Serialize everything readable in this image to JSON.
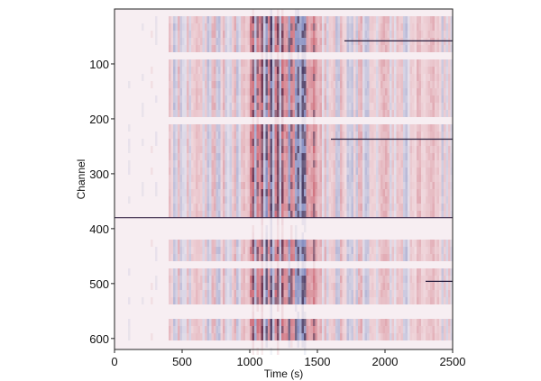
{
  "chart_data": {
    "type": "heatmap",
    "title": "",
    "xlabel": "Time (s)",
    "ylabel": "Channel",
    "xlim": [
      0,
      2500
    ],
    "ylim": [
      0,
      620
    ],
    "y_inverted": true,
    "x_ticks": [
      0,
      500,
      1000,
      1500,
      2000,
      2500
    ],
    "y_ticks": [
      100,
      200,
      300,
      400,
      500,
      600
    ],
    "colormap": [
      "#1f3a93",
      "#ffffff",
      "#b2182b"
    ],
    "dense_column_bands": [
      {
        "x_start": 400,
        "x_end": 2500,
        "intensity": 0.35
      },
      {
        "x_start": 1000,
        "x_end": 1500,
        "intensity": 0.9
      }
    ],
    "quiet_row_bands": [
      {
        "y_start": 0,
        "y_end": 15
      },
      {
        "y_start": 80,
        "y_end": 90
      },
      {
        "y_start": 195,
        "y_end": 210
      },
      {
        "y_start": 370,
        "y_end": 410
      },
      {
        "y_start": 450,
        "y_end": 465
      },
      {
        "y_start": 535,
        "y_end": 550
      },
      {
        "y_start": 590,
        "y_end": 620
      }
    ],
    "horizontal_lines": [
      {
        "y": 58,
        "x_start": 1700,
        "x_end": 2500,
        "color": "#2b2140"
      },
      {
        "y": 237,
        "x_start": 1600,
        "x_end": 2500,
        "color": "#2b2140"
      },
      {
        "y": 380,
        "x_start": 0,
        "x_end": 2500,
        "color": "#3b2a4a"
      },
      {
        "y": 496,
        "x_start": 2300,
        "x_end": 2500,
        "color": "#2b2140"
      }
    ],
    "watermark": {
      "text": "",
      "subtext": ""
    }
  }
}
